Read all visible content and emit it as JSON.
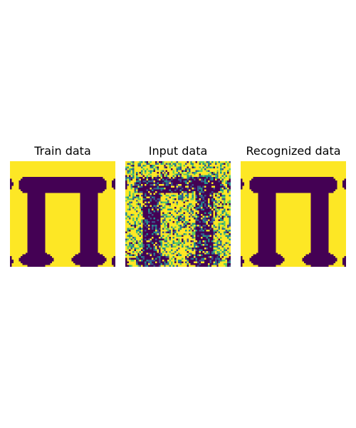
{
  "figure": {
    "panels": [
      {
        "title": "Train data",
        "kind": "clean"
      },
      {
        "title": "Input data",
        "kind": "noisy"
      },
      {
        "title": "Recognized data",
        "kind": "clean"
      }
    ]
  },
  "chart_data": {
    "type": "heatmap",
    "colormap": "viridis",
    "background_color": "#fde725",
    "foreground_color": "#440154",
    "noise_colors": [
      "#fde725",
      "#21918c",
      "#3b528b",
      "#5ec962",
      "#440154"
    ],
    "panels": [
      {
        "title": "Train data",
        "image": "Π glyph, binary"
      },
      {
        "title": "Input data",
        "image": "Π glyph with random noise"
      },
      {
        "title": "Recognized data",
        "image": "Π glyph, binary"
      }
    ]
  }
}
